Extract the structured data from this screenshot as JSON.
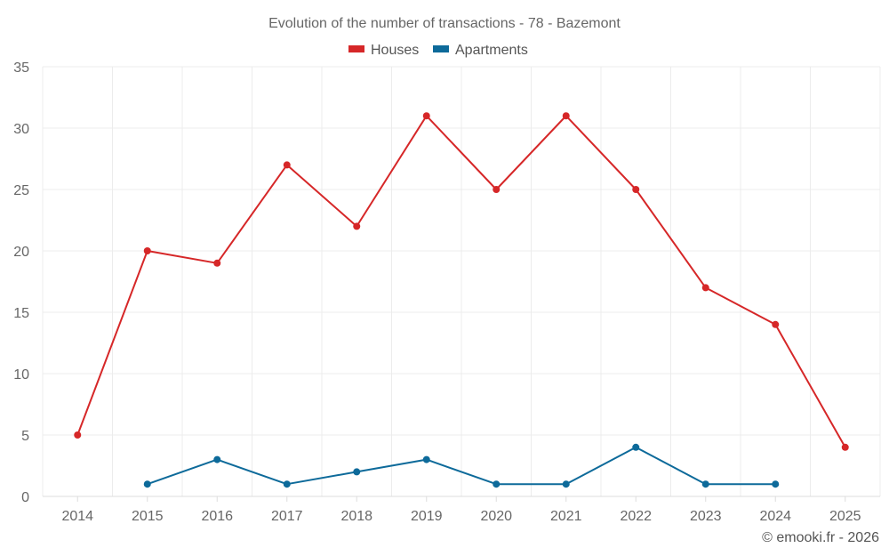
{
  "chart_data": {
    "type": "line",
    "title": "Evolution of the number of transactions - 78 - Bazemont",
    "categories": [
      "2014",
      "2015",
      "2016",
      "2017",
      "2018",
      "2019",
      "2020",
      "2021",
      "2022",
      "2023",
      "2024",
      "2025"
    ],
    "ylim": [
      0,
      35
    ],
    "yticks": [
      0,
      5,
      10,
      15,
      20,
      25,
      30,
      35
    ],
    "grid": true,
    "legend_position": "top-center",
    "xlabel": "",
    "ylabel": "",
    "series": [
      {
        "name": "Houses",
        "color": "#d62728",
        "values": [
          5,
          20,
          19,
          27,
          22,
          31,
          25,
          31,
          25,
          17,
          14,
          4
        ]
      },
      {
        "name": "Apartments",
        "color": "#0d6a9a",
        "values": [
          null,
          1,
          3,
          1,
          2,
          3,
          1,
          1,
          4,
          1,
          1,
          null
        ]
      }
    ]
  },
  "credit": "© emooki.fr - 2026"
}
